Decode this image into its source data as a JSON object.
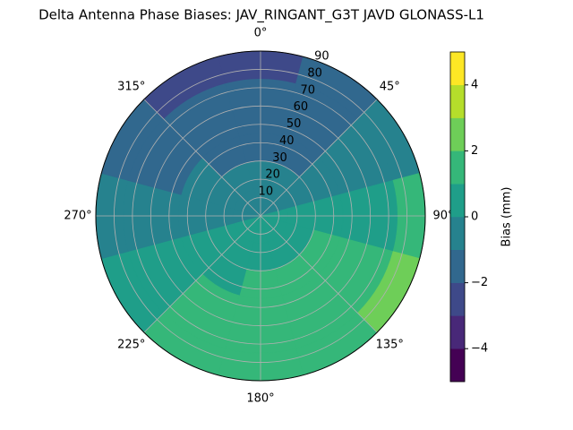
{
  "chart_data": {
    "type": "polar_contour",
    "title": "Delta Antenna Phase Biases: JAV_RINGANT_G3T JAVD GLONASS-L1",
    "theta": [
      0,
      30,
      60,
      90,
      120,
      150,
      180,
      210,
      240,
      270,
      300,
      330
    ],
    "r_edges": [
      0,
      15,
      30,
      45,
      60,
      75,
      90
    ],
    "z": [
      [
        -0.3,
        -0.8,
        -1.2,
        -1.4,
        -1.6,
        -2.1
      ],
      [
        -0.3,
        -0.7,
        -1.1,
        -1.3,
        -1.4,
        -1.5
      ],
      [
        -0.2,
        -0.4,
        -0.6,
        -0.8,
        -0.9,
        -0.7
      ],
      [
        0.1,
        0.3,
        0.5,
        0.7,
        0.9,
        1.4
      ],
      [
        0.3,
        0.6,
        1.0,
        1.3,
        1.6,
        2.3
      ],
      [
        0.4,
        0.8,
        1.1,
        1.3,
        1.4,
        1.6
      ],
      [
        0.3,
        0.7,
        1.1,
        1.2,
        1.3,
        1.5
      ],
      [
        0.2,
        0.5,
        0.8,
        1.0,
        1.1,
        1.2
      ],
      [
        0.1,
        0.3,
        0.5,
        0.6,
        0.7,
        0.6
      ],
      [
        -0.1,
        -0.2,
        -0.4,
        -0.5,
        -0.6,
        -0.5
      ],
      [
        -0.2,
        -0.6,
        -1.0,
        -1.2,
        -1.3,
        -1.4
      ],
      [
        -0.3,
        -0.8,
        -1.3,
        -1.5,
        -1.8,
        -2.3
      ]
    ],
    "rlim": [
      0,
      90
    ],
    "rticks": [
      10,
      20,
      30,
      40,
      50,
      60,
      70,
      80,
      90
    ],
    "thetaticks": [
      {
        "value": 0,
        "label": "0°"
      },
      {
        "value": 45,
        "label": "45°"
      },
      {
        "value": 90,
        "label": "90°"
      },
      {
        "value": 135,
        "label": "135°"
      },
      {
        "value": 180,
        "label": "180°"
      },
      {
        "value": 225,
        "label": "225°"
      },
      {
        "value": 270,
        "label": "270°"
      },
      {
        "value": 315,
        "label": "315°"
      }
    ],
    "grid": true,
    "colorbar": {
      "label": "Bias (mm)",
      "levels": [
        -5,
        -4,
        -3,
        -2,
        -1,
        0,
        1,
        2,
        3,
        4,
        5
      ],
      "colors": [
        "#440154",
        "#482878",
        "#3e4989",
        "#31688e",
        "#26828e",
        "#1f9e89",
        "#35b779",
        "#6ece58",
        "#b5de2b",
        "#fde725"
      ],
      "ticks": [
        {
          "value": -4,
          "label": "−4"
        },
        {
          "value": -2,
          "label": "−2"
        },
        0,
        2,
        4
      ]
    }
  }
}
